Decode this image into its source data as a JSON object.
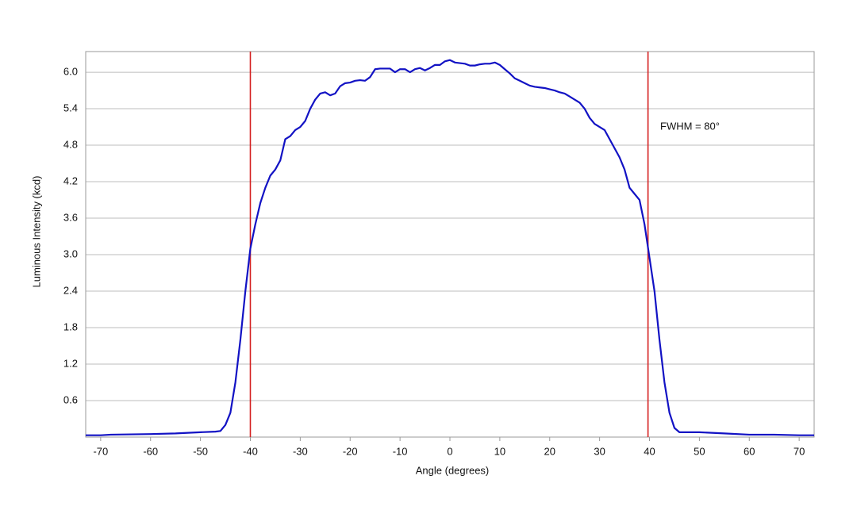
{
  "chart_data": {
    "type": "line",
    "x_label": "Angle (degrees)",
    "y_label": "Luminous Intensity (kcd)",
    "annotation": "FWHM = 80°",
    "x": [
      -73,
      -70,
      -68,
      -60,
      -55,
      -50,
      -47,
      -46,
      -45,
      -44,
      -43,
      -42,
      -41,
      -40,
      -39,
      -38,
      -37,
      -36,
      -35,
      -34,
      -33,
      -32,
      -31,
      -30,
      -29,
      -28,
      -27,
      -26,
      -25,
      -24,
      -23,
      -22,
      -21,
      -20,
      -19,
      -18,
      -17,
      -16,
      -15,
      -14,
      -13,
      -12,
      -11,
      -10,
      -9,
      -8,
      -7,
      -6,
      -5,
      -4,
      -3,
      -2,
      -1,
      0,
      1,
      2,
      3,
      4,
      5,
      6,
      7,
      8,
      9,
      10,
      11,
      12,
      13,
      14,
      15,
      16,
      17,
      18,
      19,
      20,
      21,
      22,
      23,
      24,
      25,
      26,
      27,
      28,
      29,
      30,
      31,
      32,
      33,
      34,
      35,
      36,
      37,
      38,
      39,
      40,
      41,
      42,
      43,
      44,
      45,
      46,
      50,
      55,
      60,
      65,
      70,
      73
    ],
    "series": [
      {
        "color": "#1212c4",
        "values": [
          0.03,
          0.03,
          0.04,
          0.05,
          0.06,
          0.08,
          0.09,
          0.1,
          0.2,
          0.4,
          0.9,
          1.6,
          2.4,
          3.1,
          3.5,
          3.85,
          4.1,
          4.3,
          4.4,
          4.55,
          4.9,
          4.95,
          5.05,
          5.1,
          5.2,
          5.4,
          5.55,
          5.65,
          5.67,
          5.62,
          5.65,
          5.77,
          5.82,
          5.83,
          5.86,
          5.87,
          5.86,
          5.92,
          6.05,
          6.06,
          6.06,
          6.06,
          6.0,
          6.05,
          6.05,
          6.0,
          6.05,
          6.07,
          6.03,
          6.07,
          6.12,
          6.12,
          6.18,
          6.2,
          6.16,
          6.15,
          6.14,
          6.11,
          6.11,
          6.13,
          6.14,
          6.14,
          6.16,
          6.12,
          6.05,
          5.98,
          5.9,
          5.86,
          5.82,
          5.78,
          5.76,
          5.75,
          5.74,
          5.72,
          5.7,
          5.67,
          5.65,
          5.6,
          5.55,
          5.5,
          5.4,
          5.25,
          5.15,
          5.1,
          5.05,
          4.9,
          4.75,
          4.6,
          4.4,
          4.1,
          4.0,
          3.9,
          3.5,
          2.95,
          2.4,
          1.6,
          0.9,
          0.4,
          0.15,
          0.08,
          0.08,
          0.06,
          0.04,
          0.04,
          0.03,
          0.03
        ]
      }
    ],
    "reference_lines": [
      -40,
      39.7
    ],
    "reference_color": "#d42020",
    "xlim": [
      -73,
      73
    ],
    "xticks": [
      -70,
      -60,
      -50,
      -40,
      -30,
      -20,
      -10,
      0,
      10,
      20,
      30,
      40,
      50,
      60,
      70
    ],
    "ylim": [
      0,
      6.34
    ],
    "yticks": [
      0.6,
      1.2,
      1.8,
      2.4,
      {
        "value": 3,
        "label": "3.0"
      },
      3.6,
      4.2,
      4.8,
      5.4,
      {
        "value": 6,
        "label": "6.0"
      }
    ],
    "grid": true
  }
}
